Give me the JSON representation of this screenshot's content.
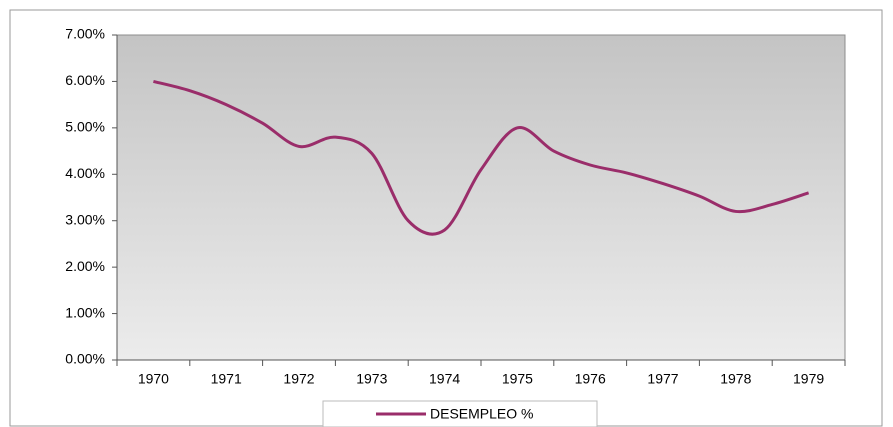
{
  "chart_data": {
    "type": "line",
    "categories": [
      "1970",
      null,
      "1971",
      null,
      "1972",
      null,
      "1973",
      null,
      "1974",
      null,
      "1975",
      null,
      "1976",
      null,
      "1977",
      null,
      "1978",
      null,
      "1979"
    ],
    "series": [
      {
        "name": "DESEMPLEO %",
        "color": "#9a2d6a",
        "values": [
          6.0,
          5.8,
          5.5,
          5.1,
          4.6,
          4.8,
          4.45,
          3.0,
          2.8,
          4.1,
          5.0,
          4.5,
          4.2,
          4.03,
          3.8,
          3.53,
          3.2,
          3.35,
          3.6
        ]
      }
    ],
    "ylim": [
      0,
      7
    ],
    "yticks": [
      {
        "value": 0,
        "label": "0.00%"
      },
      {
        "value": 1,
        "label": "1.00%"
      },
      {
        "value": 2,
        "label": "2.00%"
      },
      {
        "value": 3,
        "label": "3.00%"
      },
      {
        "value": 4,
        "label": "4.00%"
      },
      {
        "value": 5,
        "label": "5.00%"
      },
      {
        "value": 6,
        "label": "6.00%"
      },
      {
        "value": 7,
        "label": "7.00%"
      }
    ],
    "legend": "bottom"
  }
}
